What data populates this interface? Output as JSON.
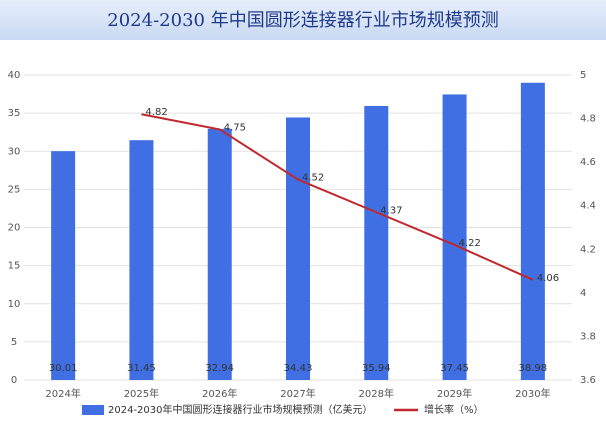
{
  "chart_data": {
    "type": "bar_line",
    "title": "2024-2030 年中国圆形连接器行业市场规模预测",
    "categories": [
      "2024年",
      "2025年",
      "2026年",
      "2027年",
      "2028年",
      "2029年",
      "2030年"
    ],
    "series": [
      {
        "name": "2024-2030年中国圆形连接器行业市场规模预测（亿美元）",
        "color": "#3f6fe3",
        "type": "bar",
        "values": [
          30.01,
          31.45,
          32.94,
          34.43,
          35.94,
          37.45,
          38.98
        ]
      },
      {
        "name": "增长率（%）",
        "color": "#c0282e",
        "type": "line",
        "axis": "y2",
        "values": [
          null,
          4.82,
          4.75,
          4.52,
          4.37,
          4.22,
          4.06
        ]
      }
    ],
    "ylim": [
      0,
      40
    ],
    "yticks": [
      0,
      5,
      10,
      15,
      20,
      25,
      30,
      35,
      40
    ],
    "y2lim": [
      3.6,
      5
    ],
    "y2ticks": [
      3.6,
      3.8,
      4,
      4.2,
      4.4,
      4.6,
      4.8,
      5
    ],
    "grid": true,
    "legend": "bottom"
  }
}
